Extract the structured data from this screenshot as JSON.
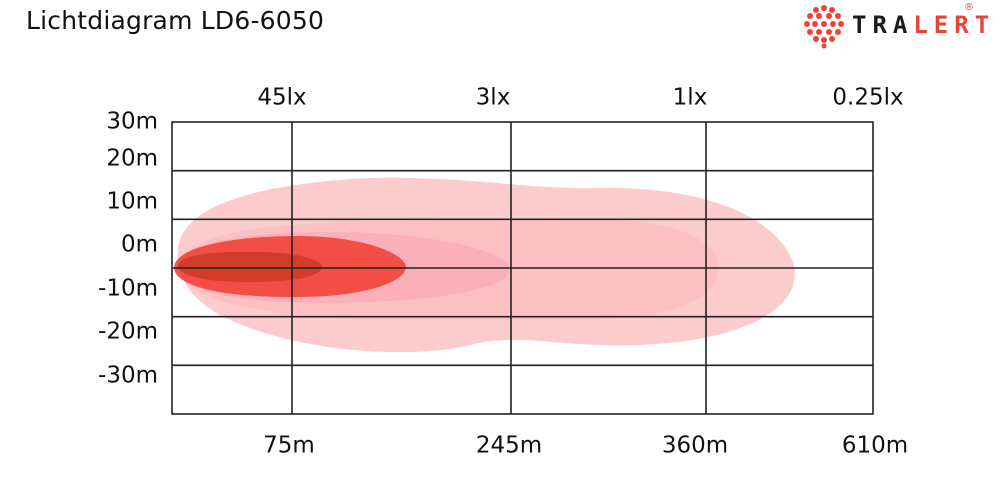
{
  "title": "Lichtdiagram LD6-6050",
  "logo": {
    "text_dark": "TRA",
    "text_accent": "LERT",
    "registered": "®",
    "brand_color": "#e8443a"
  },
  "chart_data": {
    "type": "area",
    "title": "Lichtdiagram LD6-6050",
    "y_ticks": [
      "30m",
      "20m",
      "10m",
      "0m",
      "-10m",
      "-20m",
      "-30m"
    ],
    "ylim": [
      -30,
      30
    ],
    "x_distance_labels": [
      "75m",
      "245m",
      "360m",
      "610m"
    ],
    "lux_labels": [
      "45lx",
      "3lx",
      "1lx",
      "0.25lx"
    ],
    "grid": true,
    "zones": [
      {
        "lux": "0.25lx",
        "color": "#fcc8c8"
      },
      {
        "lux": "1lx",
        "color": "#fbb6bb"
      },
      {
        "lux": "3lx",
        "color": "#f8a2b3"
      },
      {
        "lux": "45lx",
        "color": "#f2443a"
      },
      {
        "lux": "",
        "color": "#c83a20"
      }
    ]
  }
}
